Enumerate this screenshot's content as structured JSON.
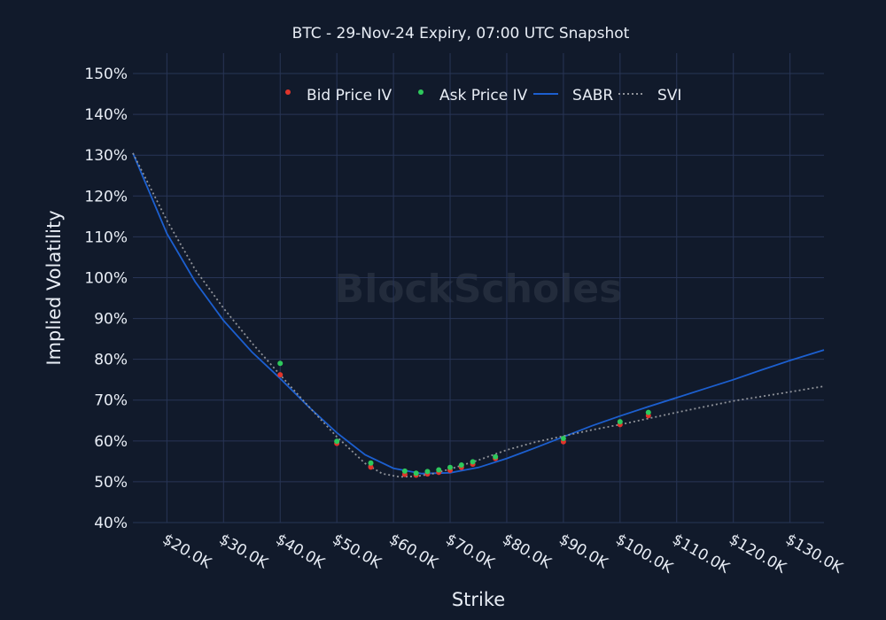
{
  "chart_data": {
    "type": "scatter",
    "title": "BTC - 29-Nov-24 Expiry, 07:00 UTC Snapshot",
    "xlabel": "Strike",
    "ylabel": "Implied Volatility",
    "xlim": [
      14000,
      136000
    ],
    "ylim": [
      40,
      155
    ],
    "x_ticks": [
      20000,
      30000,
      40000,
      50000,
      60000,
      70000,
      80000,
      90000,
      100000,
      110000,
      120000,
      130000
    ],
    "x_tick_labels": [
      "$20.0K",
      "$30.0K",
      "$40.0K",
      "$50.0K",
      "$60.0K",
      "$70.0K",
      "$80.0K",
      "$90.0K",
      "$100.0K",
      "$110.0K",
      "$120.0K",
      "$130.0K"
    ],
    "y_ticks": [
      40,
      50,
      60,
      70,
      80,
      90,
      100,
      110,
      120,
      130,
      140,
      150
    ],
    "y_tick_labels": [
      "40%",
      "50%",
      "60%",
      "70%",
      "80%",
      "90%",
      "100%",
      "110%",
      "120%",
      "130%",
      "140%",
      "150%"
    ],
    "grid": true,
    "legend_position": "top-center",
    "watermark": "BlockScholes",
    "series": [
      {
        "name": "Bid Price IV",
        "kind": "scatter",
        "color": "#e0352b",
        "x": [
          40000,
          50000,
          56000,
          62000,
          64000,
          66000,
          68000,
          70000,
          72000,
          74000,
          78000,
          90000,
          100000,
          105000
        ],
        "y": [
          76.2,
          59.4,
          53.6,
          51.8,
          51.6,
          51.9,
          52.3,
          52.8,
          53.5,
          54.3,
          55.7,
          59.8,
          64.0,
          66.2
        ]
      },
      {
        "name": "Ask Price IV",
        "kind": "scatter",
        "color": "#2ec95c",
        "x": [
          40000,
          50000,
          56000,
          62000,
          64000,
          66000,
          68000,
          70000,
          72000,
          74000,
          78000,
          90000,
          100000,
          105000
        ],
        "y": [
          79.0,
          59.9,
          54.6,
          52.6,
          52.1,
          52.5,
          52.9,
          53.5,
          54.1,
          54.9,
          56.1,
          60.6,
          64.7,
          67.0
        ]
      },
      {
        "name": "SABR",
        "kind": "line",
        "color": "#1c5fcf",
        "x": [
          14000,
          20000,
          25000,
          30000,
          35000,
          40000,
          45000,
          50000,
          55000,
          60000,
          65000,
          70000,
          75000,
          80000,
          85000,
          90000,
          95000,
          100000,
          105000,
          110000,
          115000,
          120000,
          125000,
          130000,
          136000
        ],
        "y": [
          130.5,
          110.8,
          99.0,
          89.5,
          81.8,
          75.3,
          68.4,
          62.0,
          56.6,
          53.3,
          52.0,
          52.2,
          53.5,
          55.7,
          58.3,
          61.0,
          63.7,
          66.1,
          68.4,
          70.6,
          72.8,
          75.0,
          77.4,
          79.7,
          82.3
        ]
      },
      {
        "name": "SVI",
        "kind": "line",
        "dash": "dotted",
        "color": "#8f9299",
        "x": [
          14000,
          20000,
          25000,
          30000,
          35000,
          40000,
          45000,
          50000,
          55000,
          58000,
          61000,
          64000,
          67000,
          70000,
          75000,
          80000,
          85000,
          90000,
          95000,
          100000,
          105000,
          110000,
          120000,
          130000,
          136000
        ],
        "y": [
          130.5,
          114.0,
          102.0,
          92.5,
          84.0,
          76.2,
          68.5,
          61.0,
          54.5,
          52.0,
          51.2,
          51.3,
          52.0,
          53.1,
          55.3,
          57.8,
          59.7,
          61.2,
          62.7,
          64.0,
          65.5,
          67.0,
          69.8,
          72.0,
          73.4
        ]
      }
    ]
  }
}
